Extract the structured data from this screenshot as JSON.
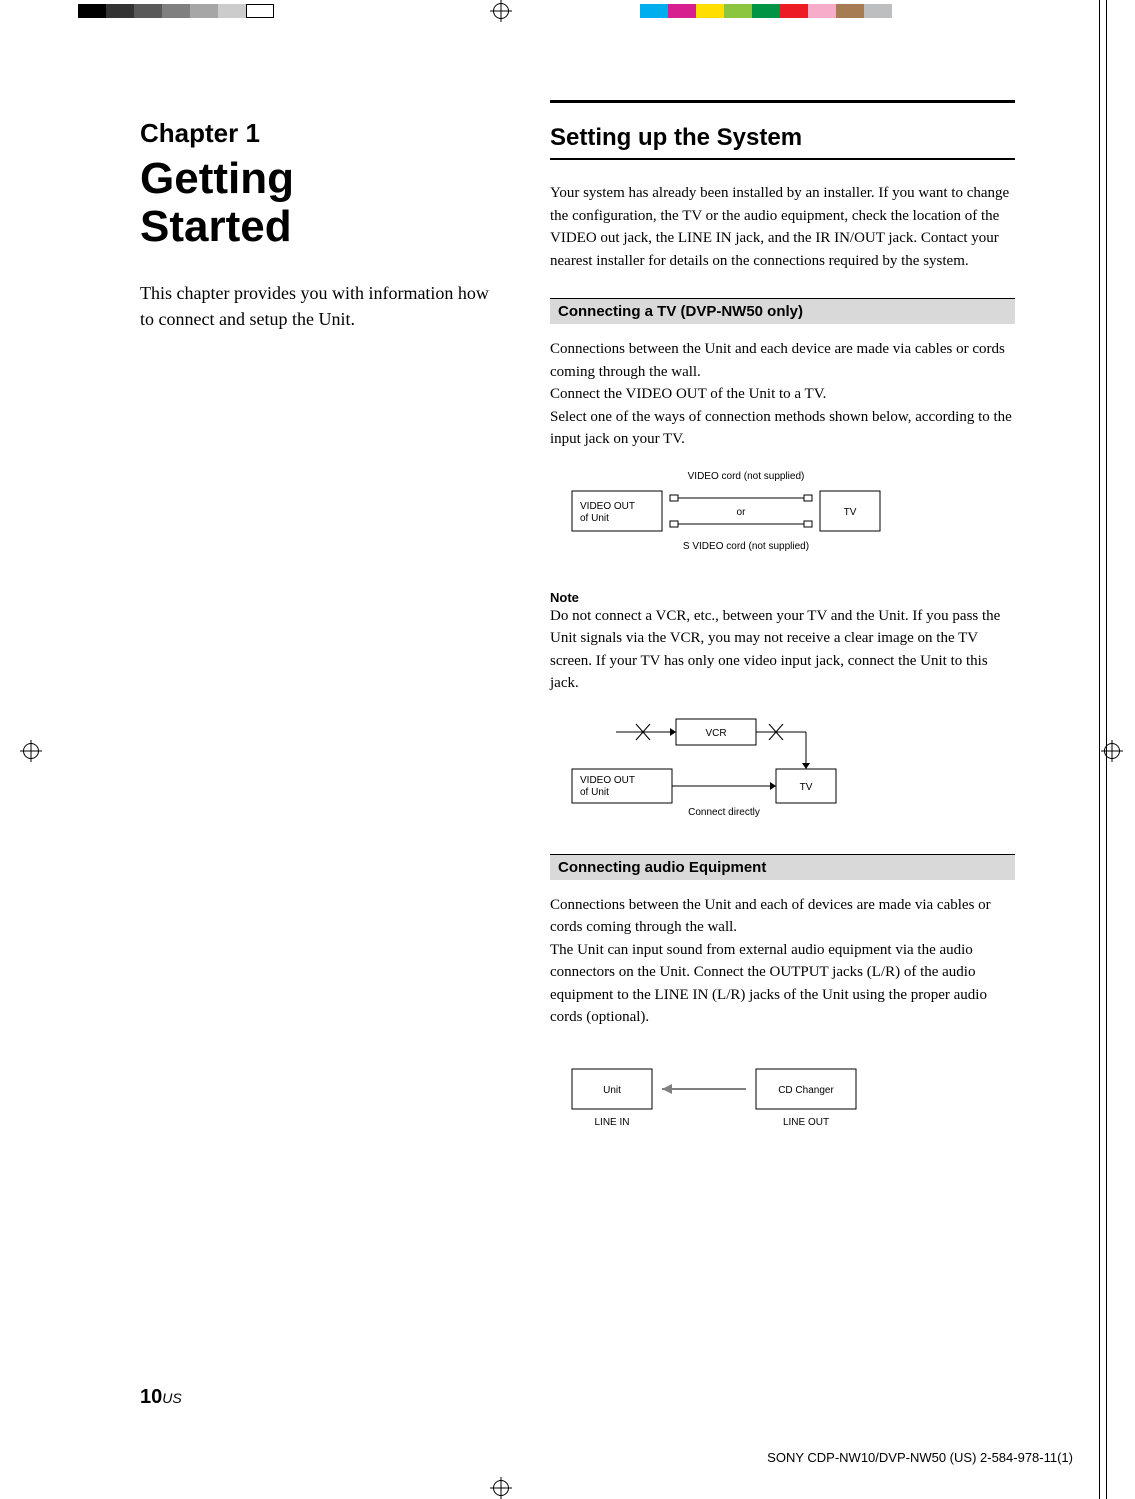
{
  "reg": {
    "gray_bar": [
      "#000000",
      "#333333",
      "#595959",
      "#808080",
      "#a6a6a6",
      "#cccccc",
      "#ffffff"
    ],
    "color_bar": [
      "#00aeef",
      "#d81f8f",
      "#ffde00",
      "#8cc63f",
      "#009444",
      "#ed1c24",
      "#f7adc9",
      "#a67c52",
      "#bcbec0"
    ]
  },
  "left": {
    "chapter_label": "Chapter 1",
    "chapter_title_l1": "Getting",
    "chapter_title_l2": "Started",
    "intro": "This chapter provides you with information how to connect and setup the Unit."
  },
  "right": {
    "section_title": "Setting up the System",
    "intro": "Your system has already been installed by an installer. If you want to change the configuration, the TV or  the audio equipment, check the location of the VIDEO out jack, the LINE IN jack, and the IR IN/OUT jack. Contact your nearest installer for details on the connections required by the system.",
    "sub1": {
      "heading": "Connecting a TV (DVP-NW50 only)",
      "body": "Connections between the Unit and each device are made via cables or cords coming through the wall.\nConnect the VIDEO OUT of the Unit to a TV.\nSelect one of the ways of connection methods shown below, according to the input jack on your TV.",
      "diagram": {
        "top_label": "VIDEO cord (not supplied)",
        "left_box_l1": "VIDEO OUT",
        "left_box_l2": "of Unit",
        "or": "or",
        "right_box": "TV",
        "bottom_label": "S VIDEO cord (not supplied)"
      },
      "note_label": "Note",
      "note_body": "Do not connect a VCR, etc., between your TV and the Unit. If you pass the Unit signals via the VCR, you may not receive a clear image on the TV screen. If your TV has only one video input jack, connect the Unit to this jack.",
      "diagram2": {
        "vcr": "VCR",
        "left_box_l1": "VIDEO OUT",
        "left_box_l2": "of Unit",
        "tv": "TV",
        "connect": "Connect directly"
      }
    },
    "sub2": {
      "heading": "Connecting audio Equipment",
      "body": "Connections between the Unit and each of devices are made via cables or cords coming through the wall.\nThe Unit can input sound from external audio equipment via the audio connectors on the Unit. Connect the OUTPUT jacks (L/R) of the audio equipment to the LINE IN (L/R) jacks of the Unit using the proper audio cords (optional).",
      "diagram": {
        "unit": "Unit",
        "cd": "CD Changer",
        "line_in": "LINE IN",
        "line_out": "LINE OUT"
      }
    }
  },
  "page": {
    "num": "10",
    "suffix": "US"
  },
  "footer": "SONY CDP-NW10/DVP-NW50 (US) 2-584-978-11(1)"
}
